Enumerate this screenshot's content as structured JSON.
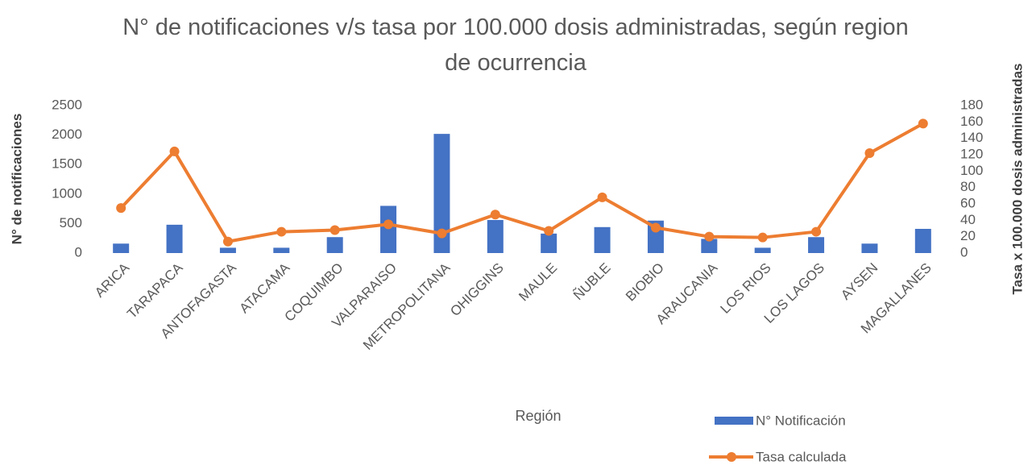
{
  "chart_data": {
    "type": "bar_line",
    "title": "N° de notificaciones  v/s tasa por 100.000 dosis administradas, según region de ocurrencia",
    "x_label": "Región",
    "y_label": "N° de notificaciones",
    "y2_label": "Tasa  x 100.000 dosis administradas",
    "categories": [
      "ARICA",
      "TARAPACA",
      "ANTOFAGASTA",
      "ATACAMA",
      "COQUIMBO",
      "VALPARAISO",
      "METROPOLITANA",
      "OHIGGINS",
      "MAULE",
      "ÑUBLE",
      "BIOBIO",
      "ARAUCANIA",
      "LOS RIOS",
      "LOS LAGOS",
      "AYSEN",
      "MAGALLANES"
    ],
    "series": [
      {
        "name": "N° Notificación",
        "type": "bar",
        "color": "#4472c4",
        "values": [
          160,
          480,
          90,
          90,
          270,
          800,
          2020,
          560,
          330,
          440,
          550,
          240,
          90,
          270,
          160,
          410
        ]
      },
      {
        "name": "Tasa calculada",
        "type": "line",
        "axis": "y2",
        "color": "#ed7d31",
        "values": [
          55,
          124,
          14,
          26,
          28,
          35,
          24,
          47,
          27,
          68,
          31,
          20,
          19,
          26,
          122,
          158
        ]
      }
    ],
    "ylim": [
      0,
      2500
    ],
    "yticks": [
      0,
      500,
      1000,
      1500,
      2000,
      2500
    ],
    "y2lim": [
      0,
      180
    ],
    "y2ticks": [
      0,
      20,
      40,
      60,
      80,
      100,
      120,
      140,
      160,
      180
    ]
  }
}
